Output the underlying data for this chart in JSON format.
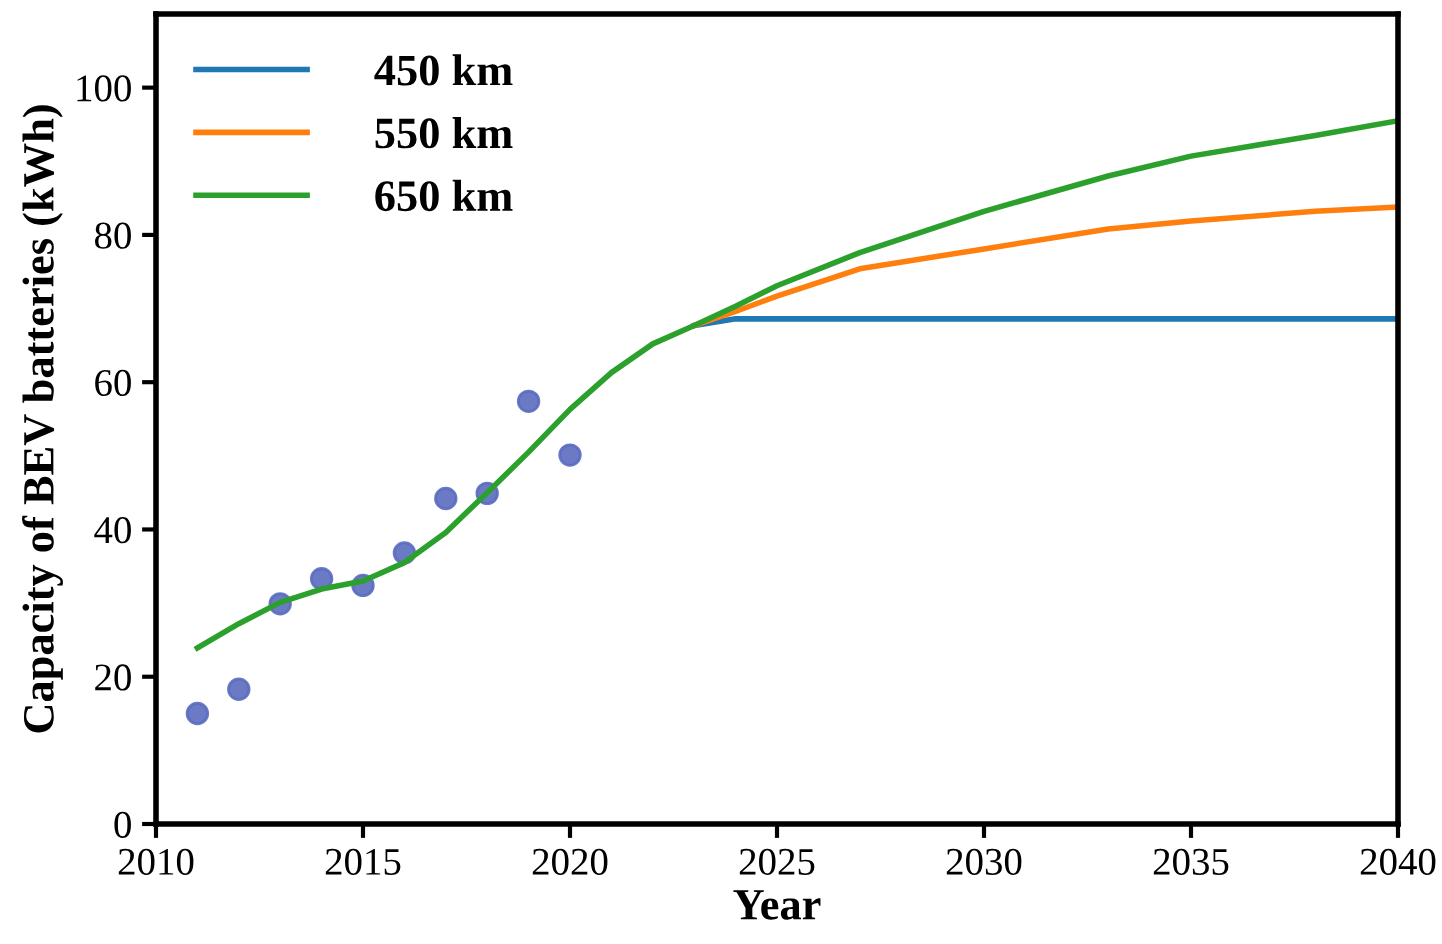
{
  "chart_data": {
    "type": "line",
    "xlabel": "Year",
    "ylabel": "Capacity of BEV batteries (kWh)",
    "xlim": [
      2010,
      2040
    ],
    "xticks": [
      2010,
      2015,
      2020,
      2025,
      2030,
      2035,
      2040
    ],
    "ylim": [
      0,
      110
    ],
    "yticks": [
      0,
      20,
      40,
      60,
      80,
      100
    ],
    "grid": false,
    "legend": "top left",
    "marker": "none",
    "line_style": "solid",
    "series": [
      {
        "name": "450 km",
        "color": "#1f77b4",
        "x": [
          2023,
          2024,
          2030,
          2040
        ],
        "values": [
          67.7,
          68.6,
          68.6,
          68.6
        ]
      },
      {
        "name": "550 km",
        "color": "#ff7f0e",
        "x": [
          2023,
          2024,
          2025,
          2027,
          2030,
          2033,
          2035,
          2038,
          2040
        ],
        "values": [
          67.7,
          69.6,
          71.7,
          75.4,
          78.1,
          80.8,
          81.9,
          83.2,
          83.8
        ]
      },
      {
        "name": "650 km",
        "color": "#2ca02c",
        "x": [
          2011,
          2012,
          2013,
          2014,
          2015,
          2016,
          2017,
          2018,
          2019,
          2020,
          2021,
          2022,
          2023,
          2024,
          2025,
          2027,
          2030,
          2033,
          2035,
          2038,
          2040
        ],
        "values": [
          23.9,
          27.2,
          30.1,
          31.9,
          33.0,
          35.5,
          39.6,
          45.0,
          50.5,
          56.3,
          61.3,
          65.2,
          67.7,
          70.3,
          73.1,
          77.6,
          83.2,
          88.0,
          90.7,
          93.5,
          95.5
        ]
      },
      {
        "type": "scatter",
        "color": "#5b6bbf",
        "marker": "circle",
        "x": [
          2011,
          2012,
          2013,
          2014,
          2015,
          2016,
          2017,
          2018,
          2019,
          2020
        ],
        "values": [
          15.0,
          18.3,
          29.9,
          33.3,
          32.4,
          36.8,
          44.2,
          44.9,
          57.4,
          50.1
        ]
      }
    ]
  }
}
